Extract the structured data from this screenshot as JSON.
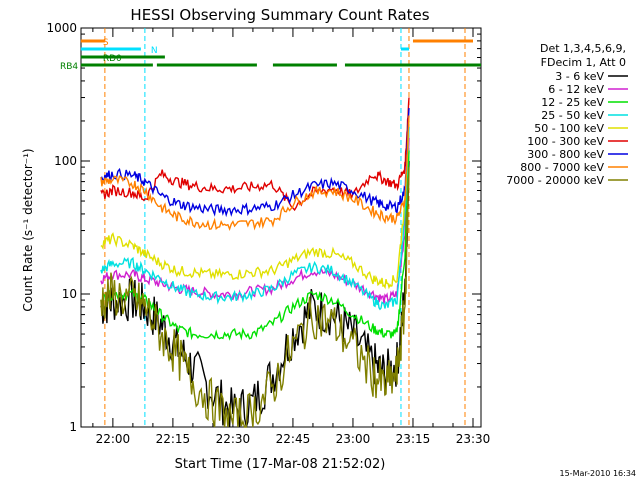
{
  "chart_data": {
    "type": "line",
    "title": "HESSI Observing Summary Count Rates",
    "xlabel": "Start Time (17-Mar-08 21:52:02)",
    "ylabel": "Count Rate (s⁻¹ detector⁻¹)",
    "yscale": "log",
    "ylim": [
      1,
      1000
    ],
    "xlim": [
      "21:52:02",
      "23:32:00"
    ],
    "x_ticks": [
      "22:00",
      "22:15",
      "22:30",
      "22:45",
      "23:00",
      "23:15",
      "23:30"
    ],
    "y_ticks": [
      "1",
      "10",
      "100",
      "1000"
    ],
    "timestamp": "15-Mar-2010 16:34",
    "legend": {
      "placement": "right",
      "header": [
        "Det 1,3,4,5,6,9,",
        "FDecim 1, Att 0"
      ]
    },
    "series": [
      {
        "name": "3 - 6 keV",
        "color": "#000000",
        "x": [
          "21:57",
          "22:00",
          "22:05",
          "22:08",
          "22:12",
          "22:16",
          "22:20",
          "22:25",
          "22:30",
          "22:35",
          "22:40",
          "22:45",
          "22:50",
          "22:55",
          "23:00",
          "23:05",
          "23:08",
          "23:11",
          "23:13",
          "23:14"
        ],
        "y": [
          8,
          9,
          9,
          8,
          6,
          4,
          2.8,
          1.8,
          1.3,
          1.5,
          2.5,
          5,
          8,
          7,
          5,
          3,
          2.5,
          3,
          10,
          100
        ]
      },
      {
        "name": "6 - 12 keV",
        "color": "#d020d0",
        "x": [
          "21:57",
          "22:00",
          "22:05",
          "22:08",
          "22:12",
          "22:16",
          "22:20",
          "22:25",
          "22:30",
          "22:35",
          "22:40",
          "22:45",
          "22:50",
          "22:55",
          "23:00",
          "23:05",
          "23:08",
          "23:11",
          "23:13",
          "23:14"
        ],
        "y": [
          13,
          14,
          14,
          13,
          12,
          11,
          10.5,
          10,
          10,
          10.5,
          11,
          13,
          15,
          14,
          12,
          10,
          9,
          10,
          30,
          150
        ]
      },
      {
        "name": "12 - 25 keV",
        "color": "#00e000",
        "x": [
          "21:57",
          "22:00",
          "22:05",
          "22:08",
          "22:12",
          "22:16",
          "22:20",
          "22:25",
          "22:30",
          "22:35",
          "22:40",
          "22:45",
          "22:50",
          "22:55",
          "23:00",
          "23:05",
          "23:08",
          "23:11",
          "23:13",
          "23:14"
        ],
        "y": [
          9,
          10,
          10,
          9,
          7,
          5.5,
          5,
          5,
          5,
          5,
          6,
          8,
          10,
          9,
          7,
          5.5,
          5,
          5,
          20,
          120
        ]
      },
      {
        "name": "25 - 50 keV",
        "color": "#00e0e0",
        "x": [
          "21:57",
          "22:00",
          "22:05",
          "22:08",
          "22:12",
          "22:16",
          "22:20",
          "22:25",
          "22:30",
          "22:35",
          "22:40",
          "22:45",
          "22:50",
          "22:55",
          "23:00",
          "23:05",
          "23:08",
          "23:11",
          "23:13",
          "23:14"
        ],
        "y": [
          15,
          17,
          17,
          15,
          13,
          11,
          10,
          9.5,
          9.5,
          10,
          11,
          14,
          16,
          15,
          12,
          9,
          8,
          9,
          40,
          180
        ]
      },
      {
        "name": "50 - 100 keV",
        "color": "#e0e000",
        "x": [
          "21:57",
          "22:00",
          "22:05",
          "22:08",
          "22:12",
          "22:16",
          "22:20",
          "22:25",
          "22:30",
          "22:35",
          "22:40",
          "22:45",
          "22:50",
          "22:55",
          "23:00",
          "23:05",
          "23:08",
          "23:11",
          "23:13",
          "23:14"
        ],
        "y": [
          24,
          26,
          23,
          20,
          17,
          15,
          14.5,
          14,
          14,
          14.5,
          15,
          18,
          21,
          20,
          17,
          13,
          12,
          13,
          50,
          200
        ]
      },
      {
        "name": "100 - 300 keV",
        "color": "#e00000",
        "x": [
          "21:57",
          "22:00",
          "22:05",
          "22:08",
          "22:12",
          "22:16",
          "22:20",
          "22:25",
          "22:30",
          "22:35",
          "22:40",
          "22:45",
          "22:50",
          "22:55",
          "23:00",
          "23:05",
          "23:08",
          "23:11",
          "23:13",
          "23:14"
        ],
        "y": [
          55,
          60,
          58,
          52,
          80,
          70,
          65,
          62,
          62,
          64,
          67,
          45,
          58,
          62,
          55,
          80,
          72,
          65,
          90,
          300
        ]
      },
      {
        "name": "300 - 800 keV",
        "color": "#0000e0",
        "x": [
          "21:57",
          "22:00",
          "22:05",
          "22:08",
          "22:12",
          "22:16",
          "22:20",
          "22:25",
          "22:30",
          "22:35",
          "22:40",
          "22:45",
          "22:50",
          "22:55",
          "23:00",
          "23:05",
          "23:08",
          "23:11",
          "23:13",
          "23:14"
        ],
        "y": [
          75,
          80,
          78,
          70,
          55,
          48,
          45,
          43,
          43,
          44,
          46,
          55,
          65,
          68,
          60,
          50,
          46,
          45,
          60,
          250
        ]
      },
      {
        "name": "800 - 7000 keV",
        "color": "#ff8000",
        "x": [
          "21:57",
          "22:00",
          "22:05",
          "22:08",
          "22:12",
          "22:16",
          "22:20",
          "22:25",
          "22:30",
          "22:35",
          "22:40",
          "22:45",
          "22:50",
          "22:55",
          "23:00",
          "23:05",
          "23:08",
          "23:11",
          "23:13",
          "23:14"
        ],
        "y": [
          70,
          72,
          68,
          60,
          45,
          38,
          35,
          33,
          33,
          34,
          36,
          48,
          58,
          60,
          52,
          42,
          38,
          37,
          50,
          220
        ]
      },
      {
        "name": "7000 - 20000 keV",
        "color": "#808000",
        "x": [
          "21:57",
          "22:00",
          "22:05",
          "22:08",
          "22:12",
          "22:16",
          "22:20",
          "22:25",
          "22:30",
          "22:35",
          "22:40",
          "22:45",
          "22:50",
          "22:55",
          "23:00",
          "23:05",
          "23:08",
          "23:11",
          "23:13",
          "23:14"
        ],
        "y": [
          9,
          10,
          9,
          8,
          5,
          3.5,
          2.2,
          1.5,
          1.1,
          1.3,
          2,
          4,
          7,
          6,
          4,
          2.5,
          2,
          2.5,
          8,
          90
        ]
      }
    ],
    "flags": [
      {
        "label": "S",
        "color": "#ff8000",
        "spans": [
          [
            "21:52",
            "21:58"
          ],
          [
            "23:15",
            "23:30"
          ]
        ]
      },
      {
        "label": "N",
        "color": "#00e0ff",
        "spans": [
          [
            "21:52",
            "22:07"
          ],
          [
            "23:12",
            "23:14"
          ]
        ]
      },
      {
        "label": "RD0",
        "color": "#008000",
        "spans": [
          [
            "21:52",
            "22:13"
          ]
        ]
      },
      {
        "label": "RB4",
        "color": "#008000",
        "spans": [
          [
            "21:52",
            "22:10"
          ],
          [
            "22:11",
            "22:36"
          ],
          [
            "22:40",
            "22:56"
          ],
          [
            "22:58",
            "23:32"
          ]
        ]
      }
    ],
    "vlines": [
      {
        "time": "21:58",
        "color": "#ff8000"
      },
      {
        "time": "22:08",
        "color": "#00e0ff"
      },
      {
        "time": "23:12",
        "color": "#00e0ff"
      },
      {
        "time": "23:14",
        "color": "#ff8000"
      },
      {
        "time": "23:28",
        "color": "#ff8000"
      }
    ]
  }
}
